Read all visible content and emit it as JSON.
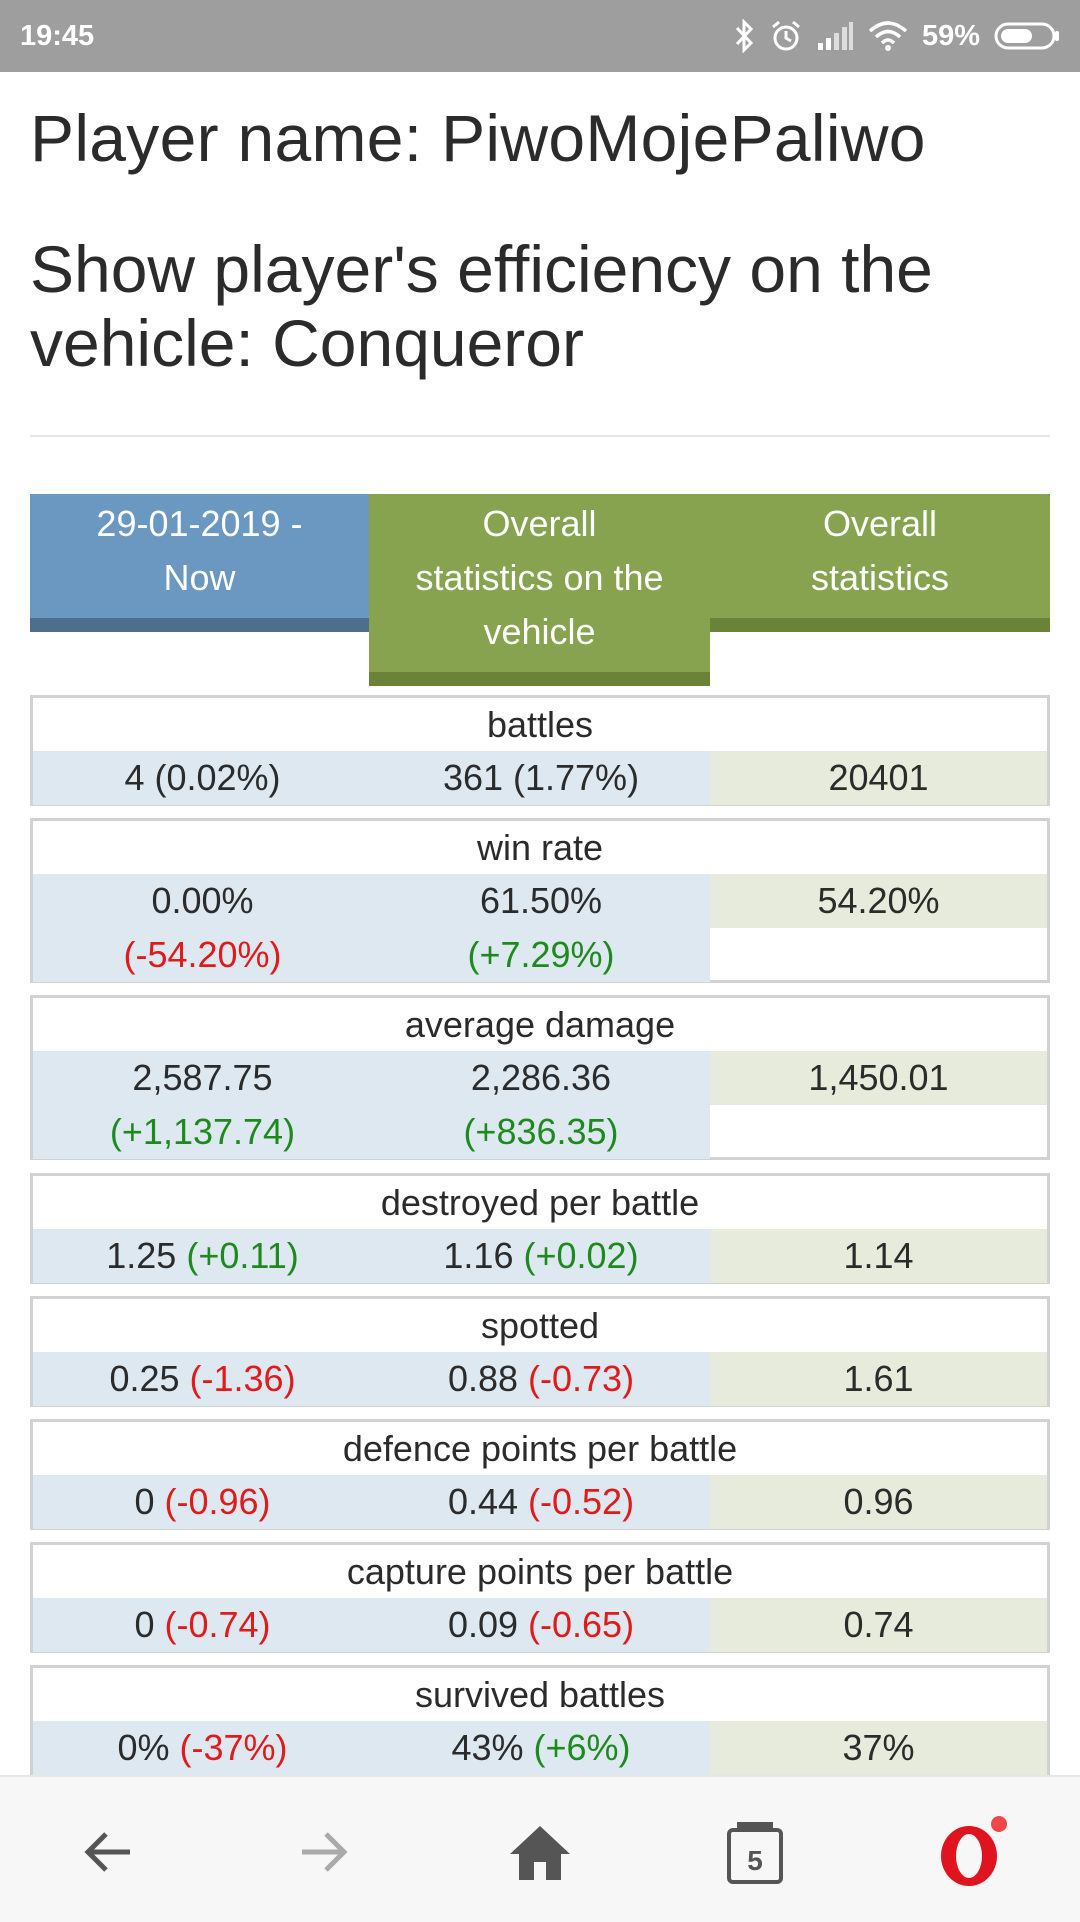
{
  "status": {
    "time": "19:45",
    "battery": "59%"
  },
  "header": {
    "player_title": "Player name: PiwoMojePaliwo",
    "vehicle_title": "Show player's efficiency on the vehicle: Conqueror"
  },
  "tabs": {
    "period_line1": "29-01-2019 -",
    "period_line2": "Now",
    "vehicle_line1": "Overall",
    "vehicle_line2": "statistics on the",
    "vehicle_line3": "vehicle",
    "overall_line1": "Overall",
    "overall_line2": "statistics"
  },
  "stats": [
    {
      "name": "battles",
      "period": "4 (0.02%)",
      "vehicle": "361 (1.77%)",
      "overall": "20401"
    },
    {
      "name": "win rate",
      "period": "0.00%",
      "period_diff": "(-54.20%)",
      "vehicle": "61.50%",
      "vehicle_diff": "(+7.29%)",
      "overall": "54.20%"
    },
    {
      "name": "average damage",
      "period": "2,587.75",
      "period_diff": "(+1,137.74)",
      "vehicle": "2,286.36",
      "vehicle_diff": "(+836.35)",
      "overall": "1,450.01"
    },
    {
      "name": "destroyed per battle",
      "period": "1.25",
      "period_diff": "(+0.11)",
      "vehicle": "1.16",
      "vehicle_diff": "(+0.02)",
      "overall": "1.14"
    },
    {
      "name": "spotted",
      "period": "0.25",
      "period_diff": "(-1.36)",
      "vehicle": "0.88",
      "vehicle_diff": "(-0.73)",
      "overall": "1.61"
    },
    {
      "name": "defence points per battle",
      "period": "0",
      "period_diff": "(-0.96)",
      "vehicle": "0.44",
      "vehicle_diff": "(-0.52)",
      "overall": "0.96"
    },
    {
      "name": "capture points per battle",
      "period": "0",
      "period_diff": "(-0.74)",
      "vehicle": "0.09",
      "vehicle_diff": "(-0.65)",
      "overall": "0.74"
    },
    {
      "name": "survived battles",
      "period": "0%",
      "period_diff": "(-37%)",
      "vehicle": "43%",
      "vehicle_diff": "(+6%)",
      "overall": "37%"
    }
  ],
  "nav": {
    "tab_count": "5"
  },
  "icons": {
    "back": "back-arrow-icon",
    "forward": "forward-arrow-icon",
    "home": "home-icon",
    "tabs": "tabs-icon",
    "opera": "opera-icon"
  },
  "colors": {
    "period_tab": "#6a98c0",
    "vehicle_tab": "#87a34f",
    "positive": "#1e8a1e",
    "negative": "#e11a1a"
  }
}
